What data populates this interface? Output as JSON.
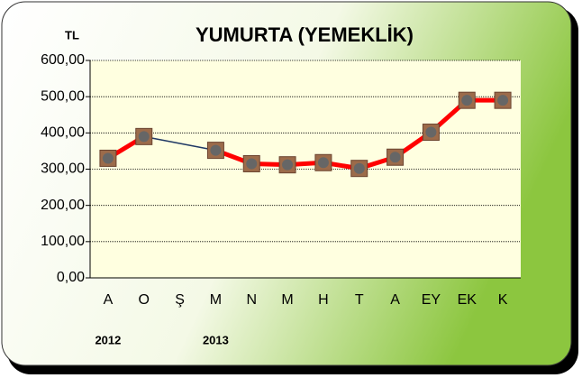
{
  "chart_data": {
    "type": "line",
    "title": "YUMURTA (YEMEKLİK)",
    "y_label": "TL",
    "categories": [
      "A",
      "O",
      "Ş",
      "M",
      "N",
      "M",
      "H",
      "T",
      "A",
      "EY",
      "EK",
      "K"
    ],
    "year_labels": [
      "2012",
      null,
      null,
      "2013",
      null,
      null,
      null,
      null,
      null,
      null,
      null,
      null
    ],
    "series": [
      {
        "name": null,
        "color": "#ff0000",
        "values": [
          330,
          390,
          null,
          352,
          315,
          312,
          318,
          302,
          333,
          402,
          490,
          490
        ]
      }
    ],
    "ylim": [
      0,
      600
    ],
    "yticks": [
      {
        "value": 0,
        "label": "0,00"
      },
      {
        "value": 100,
        "label": "100,00"
      },
      {
        "value": 200,
        "label": "200,00"
      },
      {
        "value": 300,
        "label": "300,00"
      },
      {
        "value": 400,
        "label": "400,00"
      },
      {
        "value": 500,
        "label": "500,00"
      },
      {
        "value": 600,
        "label": "600,00"
      }
    ],
    "grid": true
  }
}
